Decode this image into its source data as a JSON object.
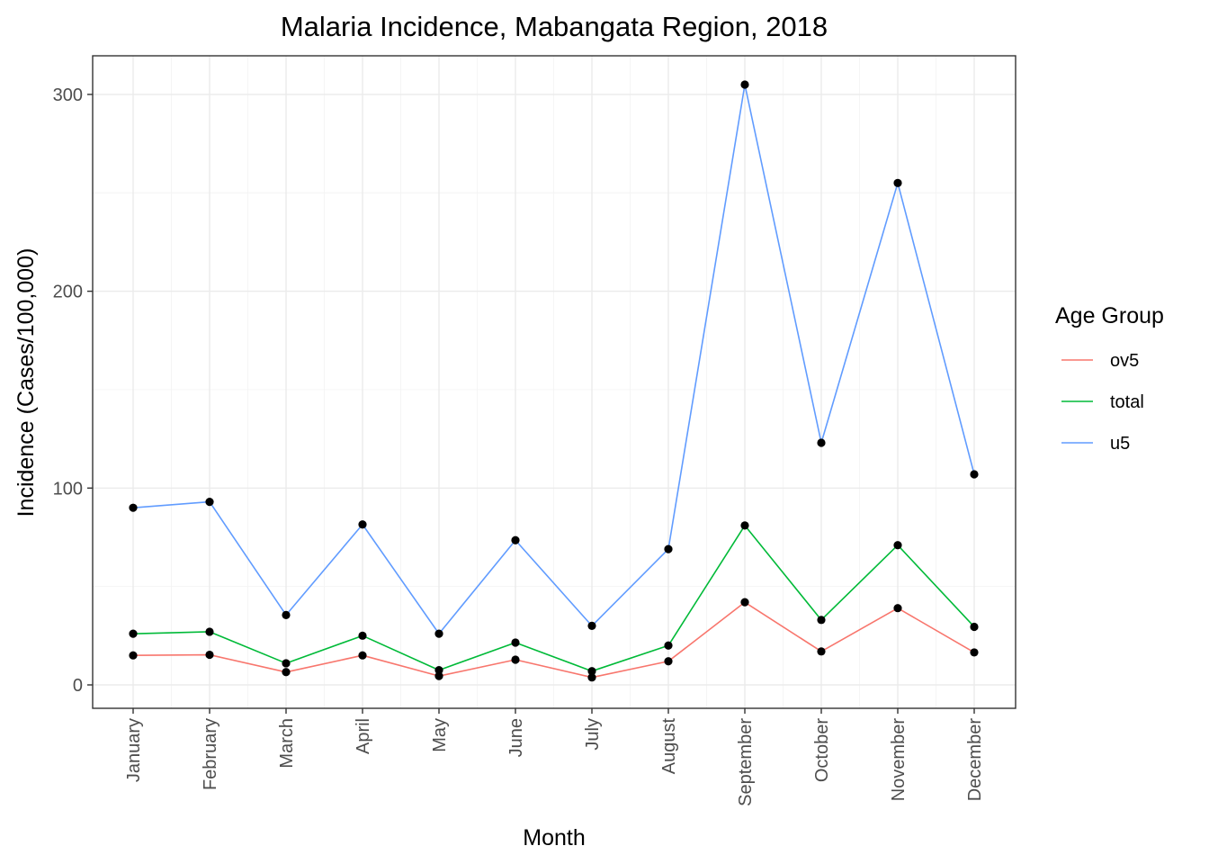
{
  "chart_data": {
    "type": "line",
    "title": "Malaria Incidence, Mabangata Region, 2018",
    "xlabel": "Month",
    "ylabel": "Incidence (Cases/100,000)",
    "categories": [
      "January",
      "February",
      "March",
      "April",
      "May",
      "June",
      "July",
      "August",
      "September",
      "October",
      "November",
      "December"
    ],
    "ylim": [
      -12,
      320
    ],
    "yticks": [
      0,
      100,
      200,
      300
    ],
    "y_tick_labels": [
      "0",
      "100",
      "200",
      "300"
    ],
    "grid": true,
    "legend": {
      "title": "Age Group",
      "position": "right"
    },
    "point_color": "#000000",
    "series": [
      {
        "name": "ov5",
        "color": "#F8766D",
        "values": [
          15,
          15.3,
          6.5,
          15,
          4.5,
          12.8,
          3.8,
          12,
          42,
          17,
          39,
          16.5
        ]
      },
      {
        "name": "total",
        "color": "#00BA38",
        "values": [
          26,
          27,
          11,
          25,
          7.5,
          21.5,
          7,
          20,
          81,
          33,
          71,
          29.5
        ]
      },
      {
        "name": "u5",
        "color": "#619CFF",
        "values": [
          90,
          93,
          35.5,
          81.5,
          26,
          73.5,
          30,
          69,
          305,
          123,
          255,
          107
        ]
      }
    ]
  }
}
